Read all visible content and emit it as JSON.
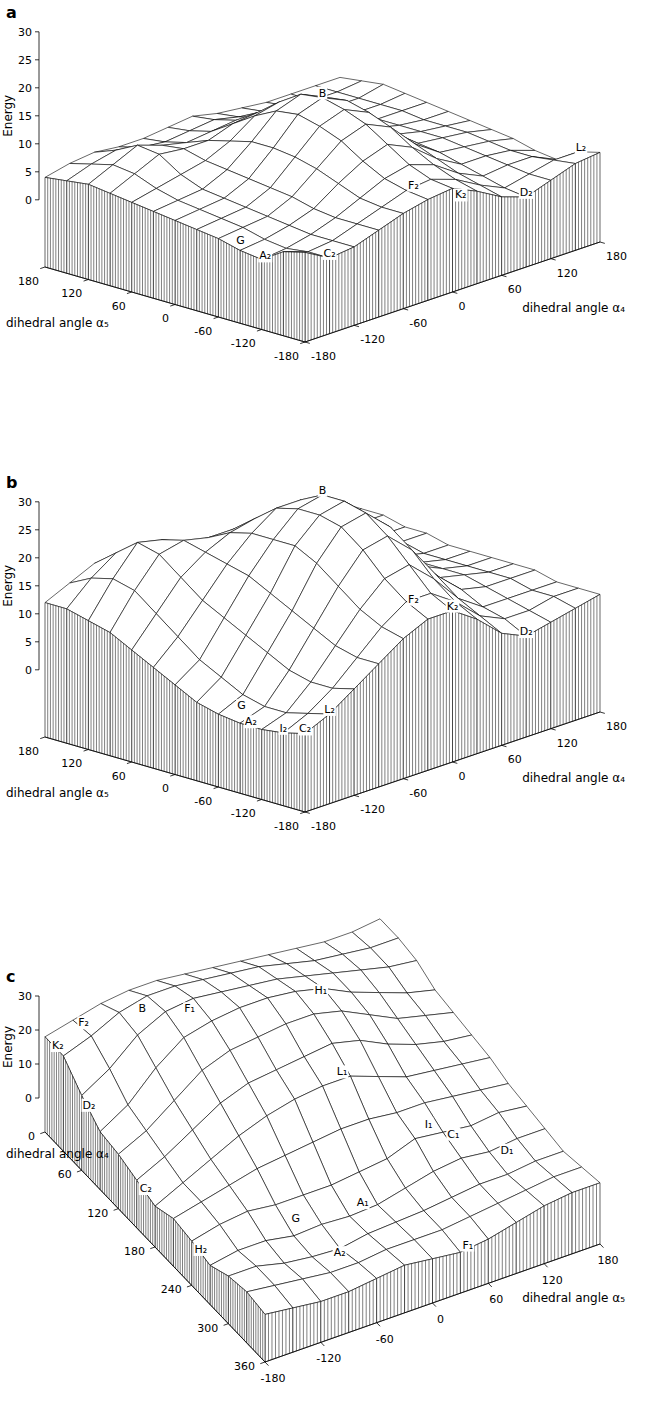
{
  "chart_data": [
    {
      "type": "surface",
      "title": "a",
      "x_label": "dihedral angle α₄",
      "y_label": "dihedral angle α₅",
      "z_label": "Energy",
      "x": [
        -180,
        -150,
        -120,
        -90,
        -60,
        -30,
        0,
        30,
        60,
        90,
        120,
        150,
        180
      ],
      "y": [
        -180,
        -150,
        -120,
        -90,
        -60,
        -30,
        0,
        30,
        60,
        90,
        120,
        150,
        180
      ],
      "z": [
        [
          4,
          1.5,
          2,
          3.5,
          5,
          6,
          6.5,
          4.5,
          2,
          0.5,
          2,
          3.5,
          4
        ],
        [
          3,
          1.5,
          2,
          3.5,
          5,
          6.5,
          7,
          5.5,
          3,
          1,
          2,
          3,
          3
        ],
        [
          0.5,
          1,
          2,
          3.5,
          5.5,
          7.5,
          8.5,
          7,
          4,
          2,
          2.5,
          2.5,
          0.5
        ],
        [
          1,
          1.5,
          2.5,
          4,
          7,
          9.5,
          11,
          9,
          5.5,
          3,
          3,
          2.5,
          1
        ],
        [
          2,
          2.5,
          3,
          5,
          8.5,
          12,
          13.5,
          11.5,
          7,
          4,
          3.5,
          3,
          2
        ],
        [
          2.5,
          3,
          3.5,
          5.5,
          9.5,
          13.5,
          15,
          13,
          8,
          4.5,
          4,
          3.5,
          2.5
        ],
        [
          3,
          3.5,
          4,
          6,
          10,
          14.5,
          16,
          14,
          9,
          5,
          4,
          3.5,
          3
        ],
        [
          3.5,
          4,
          4.5,
          6.5,
          10,
          14,
          15.5,
          13.5,
          8.5,
          5,
          4,
          3.5,
          3.5
        ],
        [
          4,
          5,
          6,
          7,
          9,
          12,
          13,
          11,
          7.5,
          5,
          4,
          4,
          4
        ],
        [
          4.5,
          6.5,
          8.5,
          8,
          8,
          9.5,
          10,
          8.5,
          6.5,
          5,
          4,
          4,
          4.5
        ],
        [
          5,
          7,
          9,
          7.5,
          6.5,
          7,
          7.5,
          6.5,
          5.5,
          4.5,
          4,
          4,
          5
        ],
        [
          4.5,
          6,
          7,
          6,
          5.5,
          6,
          6.5,
          5.5,
          5,
          4.5,
          4,
          4,
          4.5
        ],
        [
          4,
          5,
          5.5,
          5,
          5,
          5.5,
          6,
          5,
          4.5,
          4,
          4,
          4,
          4
        ]
      ],
      "xlim": [
        -180,
        180
      ],
      "ylim": [
        -180,
        180
      ],
      "zlim": [
        0,
        30
      ],
      "xticks": [
        -180,
        -120,
        -60,
        0,
        60,
        120,
        180
      ],
      "yticks": [
        -180,
        -120,
        -60,
        0,
        60,
        120,
        180
      ],
      "zticks": [
        0,
        5,
        10,
        15,
        20,
        25,
        30
      ],
      "annotations": [
        {
          "text": "B",
          "x": 0,
          "y": 0,
          "z": 16
        },
        {
          "text": "F₂",
          "x": -30,
          "y": -160,
          "z": 7
        },
        {
          "text": "K₂",
          "x": 10,
          "y": -180,
          "z": 4
        },
        {
          "text": "D₂",
          "x": 90,
          "y": -180,
          "z": 0.5
        },
        {
          "text": "L₂",
          "x": 170,
          "y": -165,
          "z": 4
        },
        {
          "text": "A₂",
          "x": -180,
          "y": -125,
          "z": 0.5
        },
        {
          "text": "G",
          "x": -175,
          "y": -85,
          "z": 1.5
        },
        {
          "text": "C₂",
          "x": -150,
          "y": -180,
          "z": 1.5
        }
      ]
    },
    {
      "type": "surface",
      "title": "b",
      "x_label": "dihedral angle α₄",
      "y_label": "dihedral angle α₅",
      "z_label": "Energy",
      "x": [
        -180,
        -150,
        -120,
        -90,
        -60,
        -30,
        0,
        30,
        60,
        90,
        120,
        150,
        180
      ],
      "y": [
        -180,
        -150,
        -120,
        -90,
        -60,
        -30,
        0,
        30,
        60,
        90,
        120,
        150,
        180
      ],
      "z": [
        [
          2,
          4,
          7,
          10,
          13,
          15,
          15,
          12,
          8,
          6,
          7,
          8,
          9
        ],
        [
          1,
          3,
          6,
          10,
          14,
          17,
          17,
          14,
          10,
          8,
          8,
          9,
          9
        ],
        [
          0.5,
          2,
          6,
          11,
          16,
          20,
          21,
          17,
          12,
          9,
          9,
          9,
          9
        ],
        [
          0.5,
          2,
          7,
          13,
          19,
          24,
          25,
          21,
          15,
          11,
          10,
          10,
          10
        ],
        [
          1,
          3,
          9,
          15,
          22,
          27,
          28,
          24,
          17,
          12,
          11,
          10,
          10
        ],
        [
          2,
          5,
          11,
          17,
          24,
          28,
          29,
          25,
          18,
          13,
          11,
          10,
          10
        ],
        [
          4,
          7,
          13,
          19,
          24,
          28,
          29,
          25,
          18,
          13,
          11,
          10,
          10
        ],
        [
          6,
          10,
          15,
          20,
          24,
          27,
          27,
          23,
          17,
          13,
          11,
          10,
          10
        ],
        [
          8,
          13,
          18,
          21,
          23,
          24,
          24,
          20,
          15,
          12,
          11,
          11,
          11
        ],
        [
          10,
          16,
          21,
          22,
          21,
          21,
          20,
          17,
          14,
          12,
          11,
          11,
          11
        ],
        [
          11,
          17,
          22,
          21,
          19,
          18,
          17,
          15,
          13,
          12,
          12,
          12,
          12
        ],
        [
          12,
          16,
          19,
          18,
          17,
          16,
          15,
          14,
          13,
          12,
          12,
          12,
          12
        ],
        [
          12,
          14,
          16,
          16,
          15,
          15,
          14,
          13,
          12,
          12,
          12,
          12,
          12
        ]
      ],
      "xlim": [
        -180,
        180
      ],
      "ylim": [
        -180,
        180
      ],
      "zlim": [
        0,
        30
      ],
      "xticks": [
        -180,
        -120,
        -60,
        0,
        60,
        120,
        180
      ],
      "yticks": [
        -180,
        -120,
        -60,
        0,
        60,
        120,
        180
      ],
      "zticks": [
        0,
        5,
        10,
        15,
        20,
        25,
        30
      ],
      "annotations": [
        {
          "text": "B",
          "x": 0,
          "y": 0,
          "z": 29
        },
        {
          "text": "F₂",
          "x": -30,
          "y": -160,
          "z": 17
        },
        {
          "text": "K₂",
          "x": 0,
          "y": -180,
          "z": 15
        },
        {
          "text": "D₂",
          "x": 90,
          "y": -180,
          "z": 6
        },
        {
          "text": "L₂",
          "x": -150,
          "y": -180,
          "z": 4
        },
        {
          "text": "I₂",
          "x": -180,
          "y": -150,
          "z": 1
        },
        {
          "text": "C₂",
          "x": -180,
          "y": -180,
          "z": 2
        },
        {
          "text": "A₂",
          "x": -180,
          "y": -105,
          "z": 0.5
        },
        {
          "text": "G",
          "x": -165,
          "y": -75,
          "z": 1.5
        }
      ]
    },
    {
      "type": "surface",
      "title": "c",
      "x_label": "dihedral angle α₄",
      "y_label": "dihedral angle α₅",
      "z_label": "Energy",
      "x": [
        0,
        30,
        60,
        90,
        120,
        150,
        180,
        210,
        240,
        270,
        300,
        330,
        360
      ],
      "y": [
        -180,
        -150,
        -120,
        -90,
        -60,
        -30,
        0,
        30,
        60,
        90,
        120,
        150,
        180
      ],
      "z": [
        [
          18,
          18,
          12,
          7,
          6,
          4,
          2,
          4,
          3,
          1.5,
          4,
          5,
          4
        ],
        [
          20,
          21,
          17,
          12,
          10,
          8,
          6,
          6,
          5,
          3,
          4,
          4,
          3
        ],
        [
          22,
          25,
          24,
          20,
          16,
          13,
          10,
          8,
          6,
          3,
          2,
          3,
          2
        ],
        [
          23,
          27,
          28,
          26,
          22,
          18,
          14,
          10,
          5,
          1.5,
          1,
          2,
          2
        ],
        [
          23,
          27,
          29,
          28,
          25,
          21,
          17,
          11,
          5,
          2,
          0.5,
          2,
          3
        ],
        [
          22,
          26,
          28,
          29,
          26,
          22,
          19,
          12,
          5,
          1.5,
          2,
          3,
          4
        ],
        [
          21,
          25,
          27,
          29,
          27,
          23,
          20,
          13,
          6,
          2,
          2.5,
          3,
          3
        ],
        [
          20,
          24,
          26,
          28,
          27,
          24,
          20,
          13,
          7,
          4,
          3,
          3,
          2
        ],
        [
          19,
          22,
          24,
          26,
          25,
          22,
          17,
          12,
          10,
          6,
          4,
          4,
          3
        ],
        [
          18,
          20,
          22,
          22,
          21,
          18,
          14,
          12,
          9,
          7,
          5,
          5,
          5
        ],
        [
          17,
          19,
          20,
          19,
          17,
          15,
          13,
          11,
          8,
          6,
          5,
          6,
          7
        ],
        [
          17,
          18,
          18,
          16,
          15,
          13,
          12,
          10,
          9,
          7,
          6,
          7,
          8
        ],
        [
          18,
          18,
          17,
          14,
          13,
          12,
          11,
          9,
          8,
          7,
          6,
          7,
          8
        ]
      ],
      "xlim": [
        0,
        360
      ],
      "ylim": [
        -180,
        180
      ],
      "zlim": [
        0,
        30
      ],
      "xticks": [
        0,
        60,
        120,
        180,
        240,
        300,
        360
      ],
      "yticks": [
        -180,
        -120,
        -60,
        0,
        60,
        120,
        180
      ],
      "zticks": [
        0,
        10,
        20,
        30
      ],
      "annotations": [
        {
          "text": "B",
          "x": 48,
          "y": -107,
          "z": 27
        },
        {
          "text": "F₂",
          "x": 13,
          "y": -147,
          "z": 20
        },
        {
          "text": "K₂",
          "x": 21,
          "y": -180,
          "z": 18
        },
        {
          "text": "D₂",
          "x": 72,
          "y": -180,
          "z": 10
        },
        {
          "text": "C₂",
          "x": 165,
          "y": -180,
          "z": 3
        },
        {
          "text": "H₂",
          "x": 255,
          "y": -180,
          "z": 2
        },
        {
          "text": "F₁",
          "x": 72,
          "y": -72,
          "z": 28
        },
        {
          "text": "H₁",
          "x": 101,
          "y": 50,
          "z": 27
        },
        {
          "text": "L₁",
          "x": 177,
          "y": 23,
          "z": 20
        },
        {
          "text": "I₁",
          "x": 238,
          "y": 76,
          "z": 11
        },
        {
          "text": "C₁",
          "x": 248,
          "y": 96,
          "z": 8
        },
        {
          "text": "D₁",
          "x": 281,
          "y": 132,
          "z": 6
        },
        {
          "text": "A₁",
          "x": 267,
          "y": -14,
          "z": 2
        },
        {
          "text": "G",
          "x": 258,
          "y": -80,
          "z": 2
        },
        {
          "text": "A₂",
          "x": 310,
          "y": -67,
          "z": 0.5
        },
        {
          "text": "F₁",
          "x": 360,
          "y": 38,
          "z": 2
        }
      ]
    }
  ]
}
